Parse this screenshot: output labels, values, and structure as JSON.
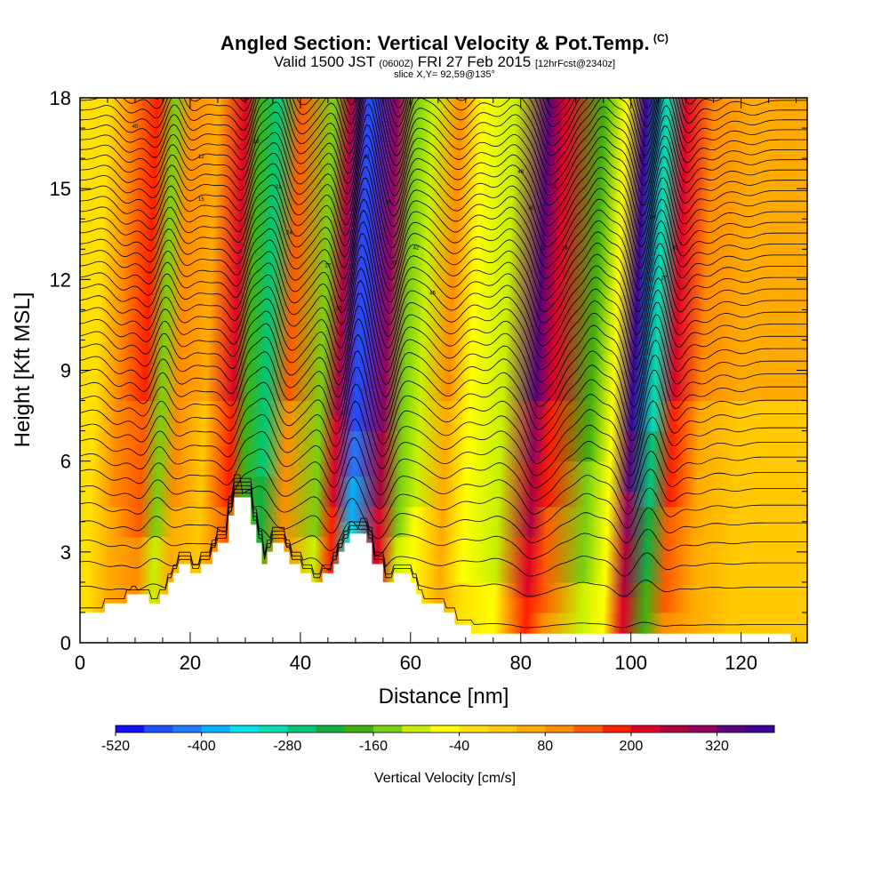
{
  "title": {
    "main": "Angled Section: Vertical Velocity & Pot.Temp.",
    "copyright": "(C)",
    "valid_prefix": "Valid 1500 JST",
    "utc": "(0600Z)",
    "valid_date": "FRI 27 Feb 2015",
    "forecast": "[12hrFcst@2340z]",
    "slice": "slice X,Y= 92,59@135°"
  },
  "chart_data": {
    "type": "heatmap",
    "xlabel": "Distance [nm]",
    "ylabel": "Height [Kft MSL]",
    "xlim": [
      0,
      132
    ],
    "ylim": [
      0,
      18
    ],
    "x_ticks": [
      0,
      20,
      40,
      60,
      80,
      100,
      120
    ],
    "y_ticks": [
      0,
      3,
      6,
      9,
      12,
      15,
      18
    ],
    "colorbar": {
      "label": "Vertical Velocity [cm/s]",
      "min": -520,
      "max": 400,
      "step": 40,
      "tick_values": [
        -520,
        -400,
        -280,
        -160,
        -40,
        80,
        200,
        320
      ],
      "tick_labels": [
        "-520",
        "-400",
        "-280",
        "-160",
        "-40",
        "80",
        "200",
        "320"
      ],
      "colors": [
        "#1010ff",
        "#1e50ff",
        "#1e7aff",
        "#00b4ff",
        "#00e6f0",
        "#00e0b0",
        "#00c878",
        "#10b040",
        "#40b010",
        "#7ad010",
        "#c8f000",
        "#ffff00",
        "#ffe000",
        "#ffc800",
        "#ffaa00",
        "#ff8c00",
        "#ff5a00",
        "#ff1e00",
        "#e00028",
        "#b00040",
        "#960060",
        "#5a007e",
        "#3c0096"
      ]
    },
    "bands": [
      {
        "x": 3,
        "w": -40
      },
      {
        "x": 7,
        "w": 100
      },
      {
        "x": 12,
        "w": 160
      },
      {
        "x": 15,
        "w": -160
      },
      {
        "x": 18,
        "w": 100
      },
      {
        "x": 23,
        "w": 40
      },
      {
        "x": 28,
        "w": 200
      },
      {
        "x": 30.5,
        "w": -200
      },
      {
        "x": 34,
        "w": -280
      },
      {
        "x": 38,
        "w": 120
      },
      {
        "x": 44,
        "w": -160
      },
      {
        "x": 47,
        "w": 250
      },
      {
        "x": 50.5,
        "w": -460
      },
      {
        "x": 55.5,
        "w": 300
      },
      {
        "x": 59,
        "w": -160
      },
      {
        "x": 62,
        "w": -100
      },
      {
        "x": 67,
        "w": 80
      },
      {
        "x": 71,
        "w": -60
      },
      {
        "x": 77,
        "w": -120
      },
      {
        "x": 83,
        "w": 320
      },
      {
        "x": 86,
        "w": 200
      },
      {
        "x": 93,
        "w": -180
      },
      {
        "x": 97,
        "w": -80
      },
      {
        "x": 100.5,
        "w": 380
      },
      {
        "x": 104.5,
        "w": -300
      },
      {
        "x": 108,
        "w": 200
      },
      {
        "x": 113,
        "w": 80
      },
      {
        "x": 120,
        "w": 40
      }
    ],
    "terrain": [
      [
        0,
        1
      ],
      [
        4.5,
        1
      ],
      [
        4.5,
        1.3
      ],
      [
        8.5,
        1.3
      ],
      [
        8.5,
        1.6
      ],
      [
        12.5,
        1.6
      ],
      [
        12.5,
        1.3
      ],
      [
        14.5,
        1.3
      ],
      [
        14.5,
        1.6
      ],
      [
        16,
        1.6
      ],
      [
        16,
        2.0
      ],
      [
        17,
        2.0
      ],
      [
        17,
        2.3
      ],
      [
        18,
        2.3
      ],
      [
        18,
        2.6
      ],
      [
        20,
        2.6
      ],
      [
        20,
        2.3
      ],
      [
        22,
        2.3
      ],
      [
        22,
        2.6
      ],
      [
        24,
        2.6
      ],
      [
        24,
        3.0
      ],
      [
        25,
        3.0
      ],
      [
        25,
        3.3
      ],
      [
        27,
        3.3
      ],
      [
        27,
        4.2
      ],
      [
        28,
        4.2
      ],
      [
        28,
        4.8
      ],
      [
        31,
        4.8
      ],
      [
        31,
        3.9
      ],
      [
        32,
        3.9
      ],
      [
        32,
        3.3
      ],
      [
        33,
        3.3
      ],
      [
        33,
        2.6
      ],
      [
        34,
        2.6
      ],
      [
        34,
        3.0
      ],
      [
        35,
        3.0
      ],
      [
        35,
        3.3
      ],
      [
        37,
        3.3
      ],
      [
        37,
        3.0
      ],
      [
        38,
        3.0
      ],
      [
        38,
        2.6
      ],
      [
        40,
        2.6
      ],
      [
        40,
        2.3
      ],
      [
        42,
        2.3
      ],
      [
        42,
        2.0
      ],
      [
        44,
        2.0
      ],
      [
        44,
        2.3
      ],
      [
        46,
        2.3
      ],
      [
        46,
        2.6
      ],
      [
        47,
        2.6
      ],
      [
        47,
        3.0
      ],
      [
        48,
        3.0
      ],
      [
        48,
        3.3
      ],
      [
        49,
        3.3
      ],
      [
        49,
        3.6
      ],
      [
        52,
        3.6
      ],
      [
        52,
        3.3
      ],
      [
        53,
        3.3
      ],
      [
        53,
        2.6
      ],
      [
        55,
        2.6
      ],
      [
        55,
        2.0
      ],
      [
        57,
        2.0
      ],
      [
        57,
        2.3
      ],
      [
        60,
        2.3
      ],
      [
        60,
        2.0
      ],
      [
        61,
        2.0
      ],
      [
        61,
        1.6
      ],
      [
        62,
        1.6
      ],
      [
        62,
        1.3
      ],
      [
        66,
        1.3
      ],
      [
        66,
        1.0
      ],
      [
        68,
        1.0
      ],
      [
        68,
        0.6
      ],
      [
        71,
        0.6
      ],
      [
        71,
        0.3
      ],
      [
        129,
        0.3
      ],
      [
        129,
        0
      ],
      [
        0,
        0
      ]
    ],
    "theta_contour_levels": 46,
    "contour_labels": [
      "40",
      "12",
      "15",
      "18",
      "21",
      "24",
      "27",
      "30",
      "33",
      "36",
      "39",
      "42",
      "45",
      "48"
    ]
  }
}
